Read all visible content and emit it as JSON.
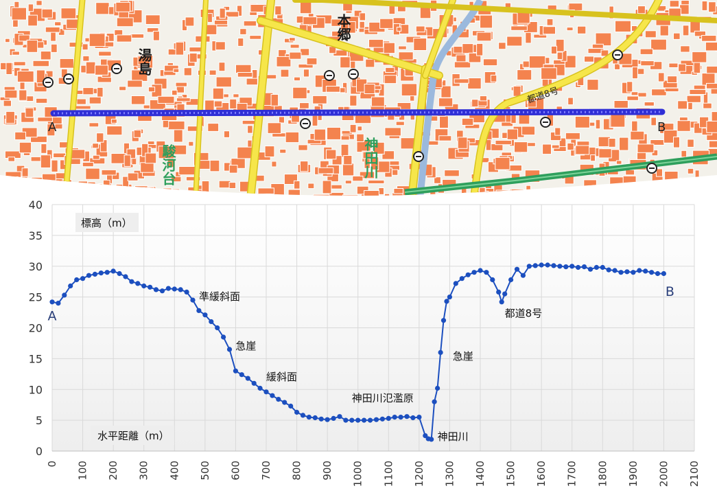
{
  "map": {
    "point_a_label": "A",
    "point_b_label": "B",
    "road_label": "都道8号",
    "place_labels": [
      "湯島",
      "本郷",
      "神田川",
      "駿河台"
    ],
    "colors": {
      "background": "#f3f1ea",
      "building": "#f4834e",
      "road_major": "#f6e64a",
      "road_edge": "#d8c21e",
      "rail": "#2e9f5c",
      "river": "#9bb9dd",
      "profile_line": "#2f2fd6",
      "symbol": "#222222"
    }
  },
  "chart_data": {
    "type": "line",
    "xlabel": "水平距離（m）",
    "ylabel": "標高（m）",
    "xlim": [
      0,
      2100
    ],
    "ylim": [
      0,
      40
    ],
    "x_ticks": [
      0,
      100,
      200,
      300,
      400,
      500,
      600,
      700,
      800,
      900,
      1000,
      1100,
      1200,
      1300,
      1400,
      1500,
      1600,
      1700,
      1800,
      1900,
      2000,
      2100
    ],
    "y_ticks": [
      0,
      5,
      10,
      15,
      20,
      25,
      30,
      35,
      40
    ],
    "grid": true,
    "line_color": "#1c4fbf",
    "x": [
      0,
      20,
      40,
      60,
      80,
      100,
      120,
      140,
      160,
      180,
      200,
      220,
      240,
      260,
      280,
      300,
      320,
      340,
      360,
      380,
      400,
      420,
      440,
      460,
      480,
      500,
      520,
      540,
      560,
      580,
      600,
      620,
      640,
      660,
      680,
      700,
      720,
      740,
      760,
      780,
      800,
      820,
      840,
      860,
      880,
      900,
      920,
      940,
      960,
      980,
      1000,
      1020,
      1040,
      1060,
      1080,
      1100,
      1120,
      1140,
      1160,
      1180,
      1200,
      1220,
      1230,
      1240,
      1250,
      1260,
      1270,
      1280,
      1290,
      1300,
      1320,
      1340,
      1360,
      1380,
      1400,
      1420,
      1440,
      1460,
      1470,
      1480,
      1500,
      1520,
      1540,
      1560,
      1580,
      1600,
      1620,
      1640,
      1660,
      1680,
      1700,
      1720,
      1740,
      1760,
      1780,
      1800,
      1820,
      1840,
      1860,
      1880,
      1900,
      1920,
      1940,
      1960,
      1980,
      2000
    ],
    "y": [
      24.2,
      24.0,
      25.3,
      26.8,
      27.8,
      28.0,
      28.5,
      28.7,
      28.9,
      29.0,
      29.2,
      28.8,
      28.3,
      27.5,
      27.2,
      26.8,
      26.6,
      26.2,
      26.0,
      26.4,
      26.3,
      26.2,
      25.8,
      24.5,
      22.8,
      22.1,
      21.0,
      20.0,
      18.5,
      16.5,
      13.0,
      12.4,
      11.8,
      11.0,
      10.2,
      9.6,
      9.0,
      8.4,
      7.9,
      7.3,
      6.3,
      5.8,
      5.5,
      5.4,
      5.2,
      5.1,
      5.3,
      5.6,
      5.0,
      5.0,
      5.0,
      5.0,
      5.0,
      5.1,
      5.2,
      5.3,
      5.5,
      5.5,
      5.6,
      5.4,
      5.5,
      2.5,
      2.0,
      1.9,
      8.0,
      10.2,
      16.0,
      21.2,
      24.3,
      25.0,
      27.2,
      28.0,
      28.6,
      29.0,
      29.3,
      29.0,
      27.8,
      25.8,
      24.2,
      25.5,
      27.8,
      29.5,
      28.5,
      30.0,
      30.1,
      30.2,
      30.2,
      30.1,
      30.0,
      29.9,
      30.0,
      29.8,
      29.9,
      29.5,
      29.8,
      29.8,
      29.4,
      29.3,
      29.0,
      29.1,
      29.0,
      29.3,
      29.2,
      29.0,
      28.8,
      28.8
    ],
    "annotations": [
      {
        "text": "A",
        "x": 0,
        "y": 21.2
      },
      {
        "text": "B",
        "x": 2020,
        "y": 25.2
      },
      {
        "text": "準緩斜面",
        "x": 480,
        "y": 24.5
      },
      {
        "text": "急崖",
        "x": 600,
        "y": 16.5
      },
      {
        "text": "緩斜面",
        "x": 700,
        "y": 11.5
      },
      {
        "text": "神田川氾濫原",
        "x": 980,
        "y": 8.0
      },
      {
        "text": "急崖",
        "x": 1310,
        "y": 14.8
      },
      {
        "text": "神田川",
        "x": 1260,
        "y": 1.8
      },
      {
        "text": "都道8号",
        "x": 1480,
        "y": 21.8
      }
    ]
  }
}
